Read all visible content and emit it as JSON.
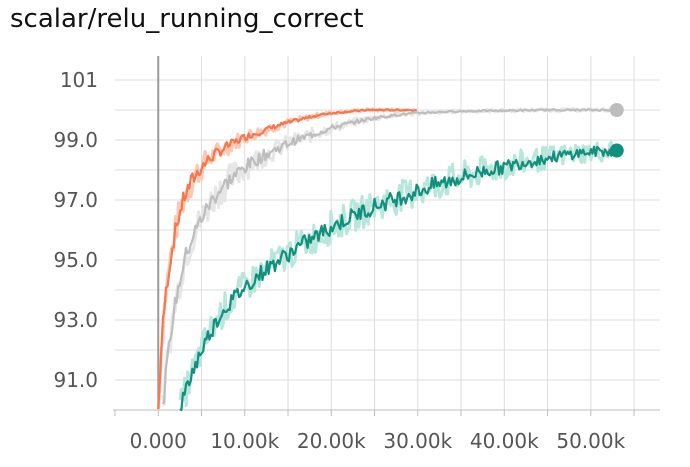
{
  "chart_data": {
    "type": "line",
    "title": "scalar/relu_running_correct",
    "xlabel": "",
    "ylabel": "",
    "xlim": [
      -5000,
      58000
    ],
    "ylim": [
      90.0,
      101.8
    ],
    "x_ticks": [
      0,
      10000,
      20000,
      30000,
      40000,
      50000
    ],
    "x_tick_labels": [
      "0.000",
      "10.00k",
      "20.00k",
      "30.00k",
      "40.00k",
      "50.00k"
    ],
    "y_ticks": [
      91,
      93,
      95,
      97,
      99,
      101
    ],
    "y_tick_labels": [
      "91.0",
      "93.0",
      "95.0",
      "97.0",
      "99.0",
      "101"
    ],
    "grid": true,
    "legend": "none",
    "series": [
      {
        "color": "#f4774f",
        "halo": "#fbc9b3",
        "x": [
          0,
          300,
          600,
          1000,
          1500,
          2000,
          2500,
          3000,
          4000,
          5000,
          6000,
          7000,
          8000,
          10000,
          12000,
          14000,
          16000,
          18000,
          20000,
          22000,
          24000,
          26000,
          28000,
          30000
        ],
        "y": [
          90.0,
          91.8,
          93.1,
          94.2,
          95.2,
          96.0,
          96.6,
          97.1,
          97.7,
          98.1,
          98.4,
          98.6,
          98.8,
          99.1,
          99.3,
          99.5,
          99.65,
          99.8,
          99.9,
          99.95,
          100.0,
          100.0,
          100.0,
          100.0
        ]
      },
      {
        "color": "#bdbdbd",
        "halo": "#e6e6e6",
        "x": [
          500,
          1000,
          1500,
          2000,
          3000,
          4000,
          5000,
          6000,
          7000,
          8000,
          10000,
          12000,
          14000,
          16000,
          18000,
          20000,
          22000,
          24000,
          26000,
          28000,
          30000,
          35000,
          40000,
          45000,
          50000,
          53000
        ],
        "y": [
          90.0,
          91.5,
          92.7,
          93.6,
          95.0,
          95.8,
          96.4,
          96.9,
          97.3,
          97.6,
          98.1,
          98.45,
          98.75,
          99.0,
          99.2,
          99.4,
          99.55,
          99.68,
          99.78,
          99.85,
          99.9,
          99.96,
          99.98,
          100.0,
          100.0,
          100.0
        ]
      },
      {
        "color": "#12907e",
        "halo": "#b8e6da",
        "x": [
          2500,
          3000,
          4000,
          5000,
          6000,
          7000,
          8000,
          10000,
          12000,
          14000,
          16000,
          18000,
          20000,
          22000,
          25000,
          28000,
          30000,
          32000,
          35000,
          38000,
          40000,
          42000,
          45000,
          48000,
          50000,
          53000
        ],
        "y": [
          90.0,
          90.5,
          91.3,
          92.0,
          92.6,
          93.1,
          93.5,
          94.1,
          94.6,
          95.0,
          95.4,
          95.75,
          96.1,
          96.4,
          96.8,
          97.1,
          97.3,
          97.5,
          97.75,
          98.0,
          98.1,
          98.25,
          98.4,
          98.55,
          98.6,
          98.65
        ]
      }
    ]
  }
}
